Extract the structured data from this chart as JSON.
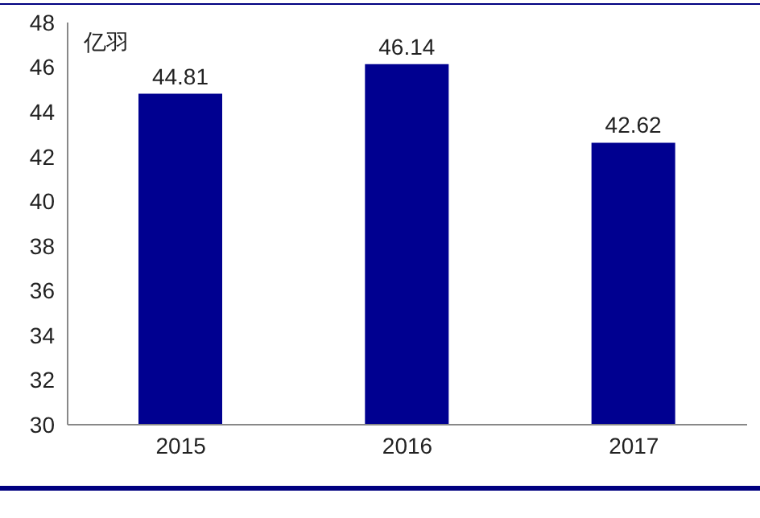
{
  "chart_data": {
    "type": "bar",
    "ylabel": "亿羽",
    "categories": [
      "2015",
      "2016",
      "2017"
    ],
    "values": [
      44.81,
      46.14,
      42.62
    ],
    "color": "#000090",
    "ylim": [
      30,
      48
    ],
    "yticks": [
      30,
      32,
      34,
      36,
      38,
      40,
      42,
      44,
      46,
      48
    ],
    "grid": false,
    "data_labels": true
  }
}
